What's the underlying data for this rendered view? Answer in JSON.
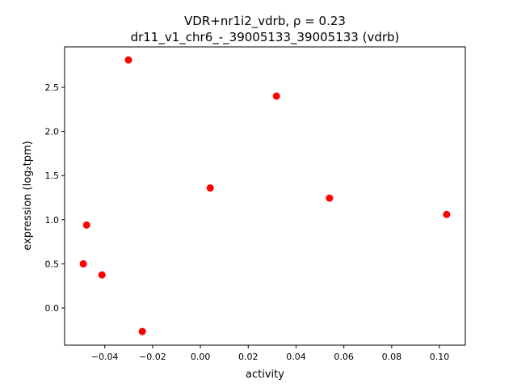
{
  "chart_data": {
    "type": "scatter",
    "title_line1": "VDR+nr1i2_vdrb, ρ = 0.23",
    "title_line2": "dr11_v1_chr6_-_39005133_39005133 (vdrb)",
    "xlabel": "activity",
    "ylabel": "expression (log₂tpm)",
    "xlim": [
      -0.0568,
      0.1108
    ],
    "ylim": [
      -0.421,
      2.958
    ],
    "xticks": [
      -0.04,
      -0.02,
      0.0,
      0.02,
      0.04,
      0.06,
      0.08,
      0.1
    ],
    "xtick_labels": [
      "−0.04",
      "−0.02",
      "0.00",
      "0.02",
      "0.04",
      "0.06",
      "0.08",
      "0.10"
    ],
    "yticks": [
      0.0,
      0.5,
      1.0,
      1.5,
      2.0,
      2.5
    ],
    "ytick_labels": [
      "0.0",
      "0.5",
      "1.0",
      "1.5",
      "2.0",
      "2.5"
    ],
    "grid": false,
    "marker_color": "#ff0000",
    "points": [
      {
        "x": -0.0301,
        "y": 2.81
      },
      {
        "x": 0.0318,
        "y": 2.4
      },
      {
        "x": 0.0041,
        "y": 1.36
      },
      {
        "x": 0.054,
        "y": 1.245
      },
      {
        "x": 0.103,
        "y": 1.06
      },
      {
        "x": -0.0476,
        "y": 0.94
      },
      {
        "x": -0.049,
        "y": 0.5
      },
      {
        "x": -0.0412,
        "y": 0.375
      },
      {
        "x": -0.0243,
        "y": -0.266
      }
    ]
  }
}
